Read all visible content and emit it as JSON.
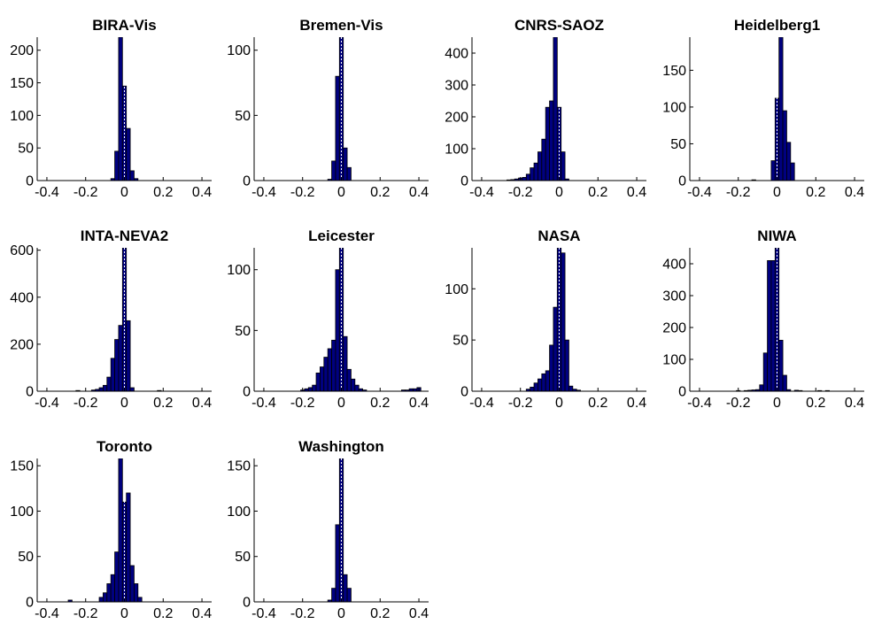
{
  "colors": {
    "bar_fill": "#000080",
    "bar_edge": "#000000",
    "axis": "#000000",
    "zero_line": "#ffffff",
    "background": "#ffffff"
  },
  "chart_data": [
    {
      "type": "bar",
      "title": "BIRA-Vis",
      "xlim": [
        -0.45,
        0.45
      ],
      "ylim": [
        0,
        220
      ],
      "xticks": [
        "-0.4",
        "-0.2",
        "0",
        "0.2",
        "0.4"
      ],
      "yticks": [
        "0",
        "50",
        "100",
        "150",
        "200"
      ],
      "bins": [
        -0.06,
        -0.04,
        -0.02,
        0,
        0.02,
        0.04,
        0.06
      ],
      "bin_width": 0.02,
      "values": [
        3,
        45,
        230,
        145,
        80,
        15,
        3
      ]
    },
    {
      "type": "bar",
      "title": "Bremen-Vis",
      "xlim": [
        -0.45,
        0.45
      ],
      "ylim": [
        0,
        110
      ],
      "xticks": [
        "-0.4",
        "-0.2",
        "0",
        "0.2",
        "0.4"
      ],
      "yticks": [
        "0",
        "50",
        "100"
      ],
      "bins": [
        -0.06,
        -0.04,
        -0.02,
        0,
        0.02,
        0.04
      ],
      "bin_width": 0.02,
      "values": [
        1,
        15,
        80,
        115,
        25,
        10
      ]
    },
    {
      "type": "bar",
      "title": "CNRS-SAOZ",
      "xlim": [
        -0.45,
        0.45
      ],
      "ylim": [
        0,
        450
      ],
      "xticks": [
        "-0.4",
        "-0.2",
        "0",
        "0.2",
        "0.4"
      ],
      "yticks": [
        "0",
        "100",
        "200",
        "300",
        "400"
      ],
      "bins": [
        -0.26,
        -0.24,
        -0.22,
        -0.2,
        -0.18,
        -0.16,
        -0.14,
        -0.12,
        -0.1,
        -0.08,
        -0.06,
        -0.04,
        -0.02,
        0,
        0.02,
        0.04
      ],
      "bin_width": 0.02,
      "values": [
        2,
        3,
        5,
        8,
        10,
        20,
        40,
        55,
        90,
        130,
        230,
        250,
        460,
        230,
        90,
        5
      ]
    },
    {
      "type": "bar",
      "title": "Heidelberg1",
      "xlim": [
        -0.45,
        0.45
      ],
      "ylim": [
        0,
        195
      ],
      "xticks": [
        "-0.4",
        "-0.2",
        "0",
        "0.2",
        "0.4"
      ],
      "yticks": [
        "0",
        "50",
        "100",
        "150"
      ],
      "bins": [
        -0.12,
        -0.02,
        0,
        0.02,
        0.04,
        0.06,
        0.08
      ],
      "bin_width": 0.02,
      "values": [
        1,
        27,
        112,
        200,
        95,
        52,
        24
      ]
    },
    {
      "type": "bar",
      "title": "INTA-NEVA2",
      "xlim": [
        -0.45,
        0.45
      ],
      "ylim": [
        0,
        610
      ],
      "xticks": [
        "-0.4",
        "-0.2",
        "0",
        "0.2",
        "0.4"
      ],
      "yticks": [
        "0",
        "200",
        "400",
        "600"
      ],
      "bins": [
        -0.24,
        -0.16,
        -0.14,
        -0.12,
        -0.1,
        -0.08,
        -0.06,
        -0.04,
        -0.02,
        0,
        0.02,
        0.04,
        0.18
      ],
      "bin_width": 0.02,
      "values": [
        3,
        5,
        8,
        15,
        25,
        60,
        140,
        220,
        280,
        620,
        300,
        15,
        3
      ]
    },
    {
      "type": "bar",
      "title": "Leicester",
      "xlim": [
        -0.45,
        0.45
      ],
      "ylim": [
        0,
        118
      ],
      "xticks": [
        "-0.4",
        "-0.2",
        "0",
        "0.2",
        "0.4"
      ],
      "yticks": [
        "0",
        "50",
        "100"
      ],
      "bins": [
        -0.2,
        -0.18,
        -0.16,
        -0.14,
        -0.12,
        -0.1,
        -0.08,
        -0.06,
        -0.04,
        -0.02,
        0,
        0.02,
        0.04,
        0.06,
        0.08,
        0.1,
        0.12,
        0.32,
        0.34,
        0.36,
        0.38,
        0.4
      ],
      "bin_width": 0.02,
      "values": [
        1,
        2,
        3,
        5,
        15,
        20,
        28,
        35,
        42,
        100,
        120,
        45,
        18,
        10,
        5,
        2,
        1,
        1,
        1,
        2,
        2,
        3
      ]
    },
    {
      "type": "bar",
      "title": "NASA",
      "xlim": [
        -0.45,
        0.45
      ],
      "ylim": [
        0,
        140
      ],
      "xticks": [
        "-0.4",
        "-0.2",
        "0",
        "0.2",
        "0.4"
      ],
      "yticks": [
        "0",
        "50",
        "100"
      ],
      "bins": [
        -0.16,
        -0.14,
        -0.12,
        -0.1,
        -0.08,
        -0.06,
        -0.04,
        -0.02,
        0,
        0.02,
        0.04,
        0.06,
        0.08,
        0.1
      ],
      "bin_width": 0.02,
      "values": [
        2,
        4,
        8,
        12,
        17,
        20,
        45,
        82,
        140,
        135,
        50,
        5,
        2,
        1
      ]
    },
    {
      "type": "bar",
      "title": "NIWA",
      "xlim": [
        -0.45,
        0.45
      ],
      "ylim": [
        0,
        450
      ],
      "xticks": [
        "-0.4",
        "-0.2",
        "0",
        "0.2",
        "0.4"
      ],
      "yticks": [
        "0",
        "100",
        "200",
        "300",
        "400"
      ],
      "bins": [
        -0.2,
        -0.16,
        -0.14,
        -0.12,
        -0.1,
        -0.08,
        -0.06,
        -0.04,
        -0.02,
        0,
        0.02,
        0.04,
        0.06,
        0.1,
        0.12,
        0.22,
        0.26
      ],
      "bin_width": 0.02,
      "values": [
        2,
        2,
        3,
        4,
        5,
        20,
        120,
        410,
        410,
        450,
        160,
        50,
        5,
        3,
        2,
        2,
        2
      ]
    },
    {
      "type": "bar",
      "title": "Toronto",
      "xlim": [
        -0.45,
        0.45
      ],
      "ylim": [
        0,
        158
      ],
      "xticks": [
        "-0.4",
        "-0.2",
        "0",
        "0.2",
        "0.4"
      ],
      "yticks": [
        "0",
        "50",
        "100",
        "150"
      ],
      "bins": [
        -0.28,
        -0.12,
        -0.1,
        -0.08,
        -0.06,
        -0.04,
        -0.02,
        0,
        0.02,
        0.04,
        0.06,
        0.08
      ],
      "bin_width": 0.02,
      "values": [
        2,
        5,
        10,
        20,
        30,
        55,
        158,
        110,
        120,
        40,
        20,
        5
      ]
    },
    {
      "type": "bar",
      "title": "Washington",
      "xlim": [
        -0.45,
        0.45
      ],
      "ylim": [
        0,
        158
      ],
      "xticks": [
        "-0.4",
        "-0.2",
        "0",
        "0.2",
        "0.4"
      ],
      "yticks": [
        "0",
        "50",
        "100",
        "150"
      ],
      "bins": [
        -0.06,
        -0.04,
        -0.02,
        0,
        0.02,
        0.04
      ],
      "bin_width": 0.02,
      "values": [
        2,
        15,
        85,
        158,
        30,
        15
      ]
    }
  ]
}
